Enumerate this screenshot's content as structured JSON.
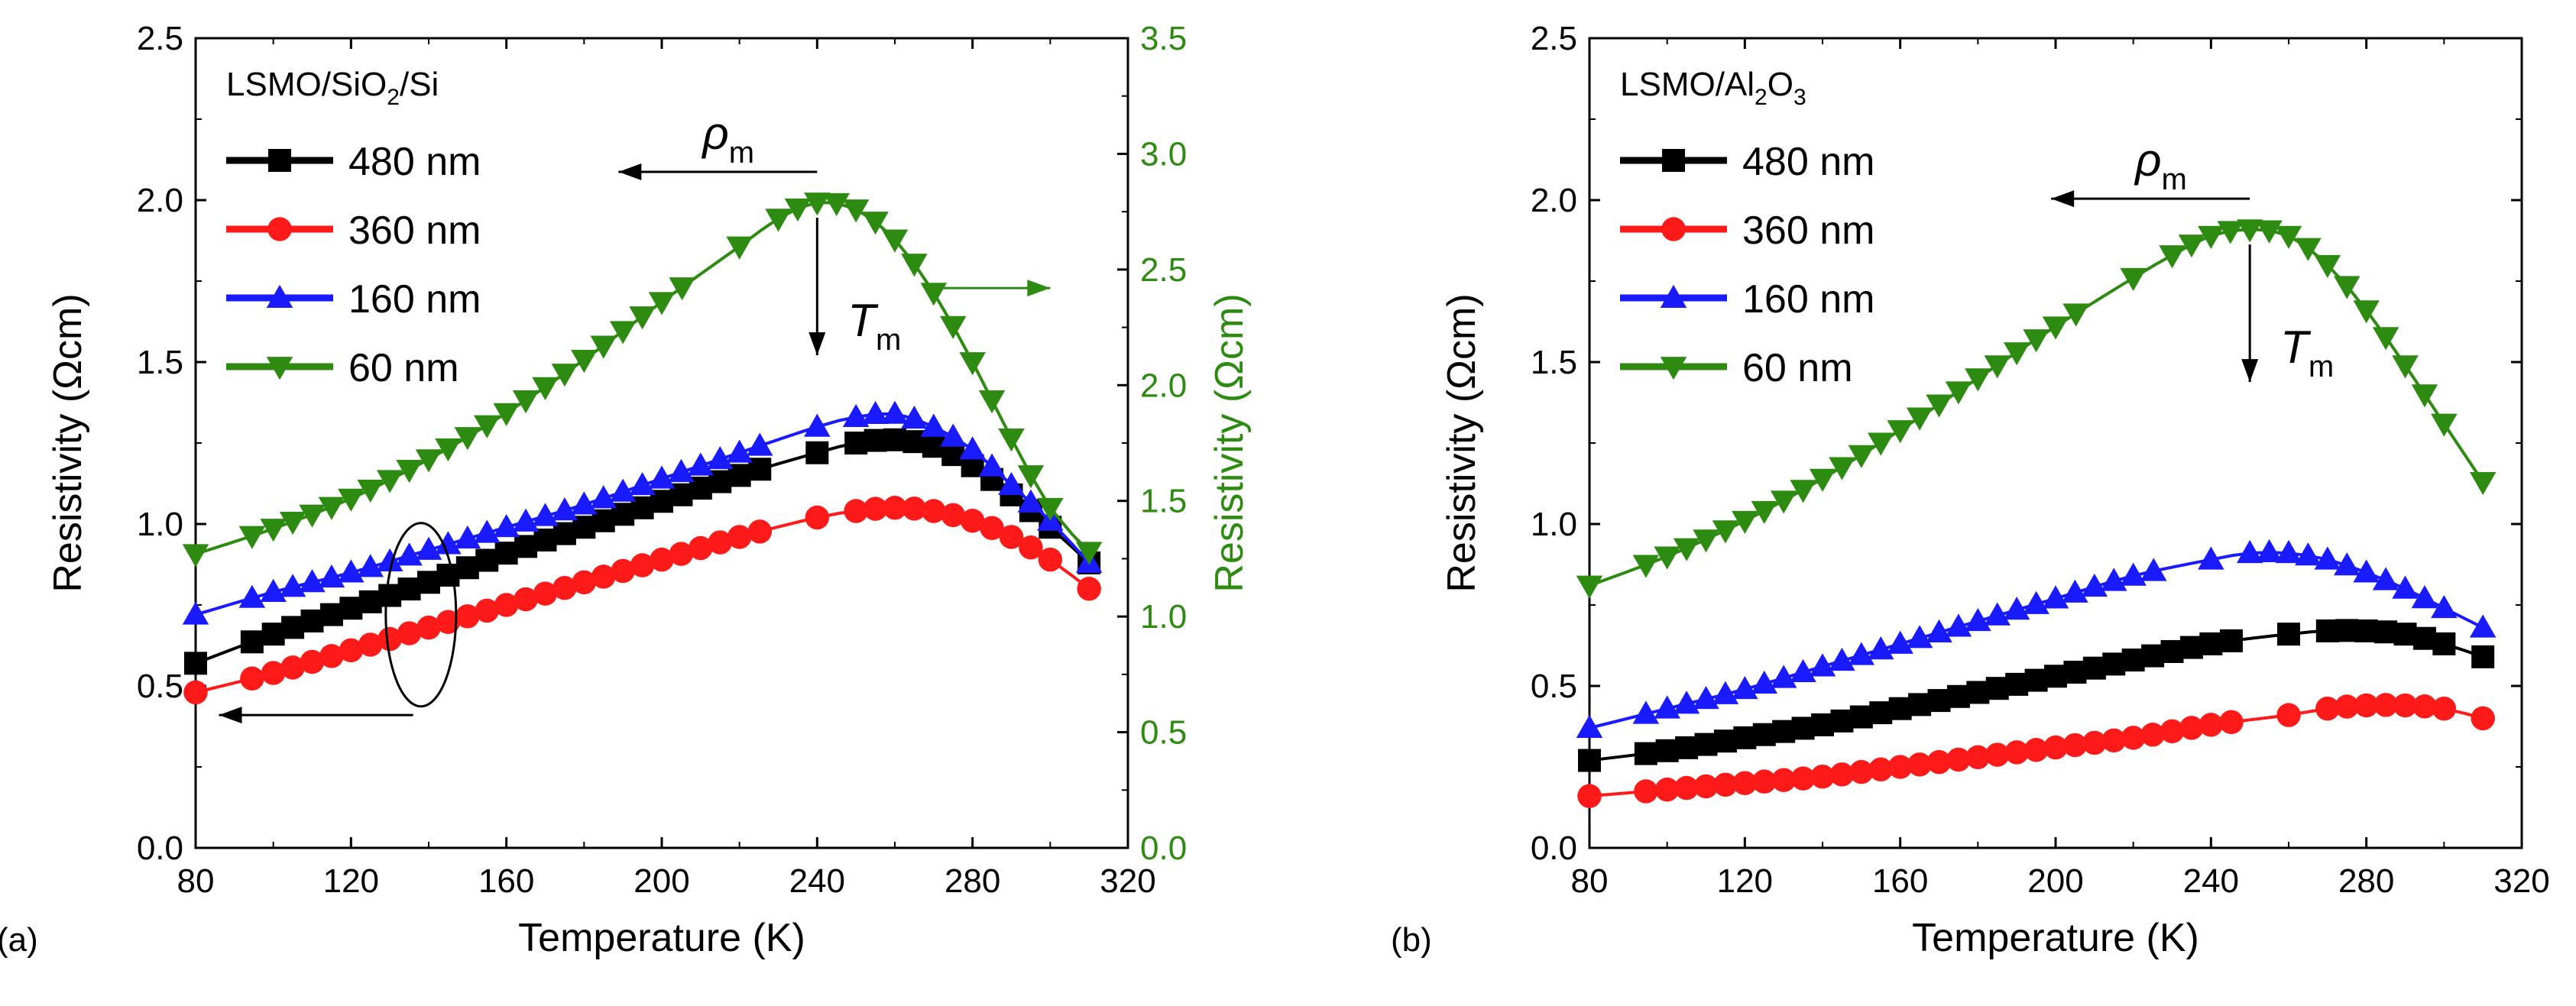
{
  "colors": {
    "black": "#000000",
    "red": "#ff1a1a",
    "blue": "#1a1aff",
    "green": "#2e8b12"
  },
  "chart_data": [
    {
      "panel_label": "(a)",
      "type": "line",
      "legend_title": "LSMO/SiO",
      "legend_title_sub": "2",
      "legend_title_tail": "/Si",
      "xlabel": "Temperature (K)",
      "ylabel": "Resistivity (Ωcm)",
      "y2label": "Resistivity (Ωcm)",
      "xlim": [
        80,
        320
      ],
      "ylim": [
        0,
        2.5
      ],
      "y2lim": [
        0,
        3.5
      ],
      "xticks": [
        "80",
        "120",
        "160",
        "200",
        "240",
        "280",
        "320"
      ],
      "yticks": [
        "0.0",
        "0.5",
        "1.0",
        "1.5",
        "2.0",
        "2.5"
      ],
      "y2ticks": [
        "0.0",
        "0.5",
        "1.0",
        "1.5",
        "2.0",
        "2.5",
        "3.0",
        "3.5"
      ],
      "annotation_rho": "ρ",
      "annotation_rho_sub": "m",
      "annotation_T": "T",
      "annotation_T_sub": "m",
      "series": [
        {
          "name": "480 nm",
          "color": "#000000",
          "marker": "square",
          "axis": "left",
          "x": [
            80,
            100,
            120,
            140,
            160,
            180,
            200,
            220,
            240,
            250,
            260,
            270,
            280,
            290,
            300,
            310
          ],
          "values": [
            0.57,
            0.66,
            0.74,
            0.82,
            0.91,
            0.99,
            1.07,
            1.15,
            1.22,
            1.25,
            1.26,
            1.24,
            1.18,
            1.09,
            0.99,
            0.88
          ]
        },
        {
          "name": "360 nm",
          "color": "#ff1a1a",
          "marker": "circle",
          "axis": "left",
          "x": [
            80,
            100,
            120,
            140,
            160,
            180,
            200,
            220,
            240,
            250,
            260,
            270,
            280,
            290,
            300,
            310
          ],
          "values": [
            0.48,
            0.54,
            0.61,
            0.68,
            0.75,
            0.82,
            0.89,
            0.96,
            1.02,
            1.04,
            1.05,
            1.04,
            1.01,
            0.96,
            0.89,
            0.8
          ]
        },
        {
          "name": "160 nm",
          "color": "#1a1aff",
          "marker": "triangle-up",
          "axis": "left",
          "x": [
            80,
            100,
            120,
            140,
            160,
            180,
            200,
            220,
            240,
            250,
            260,
            270,
            280,
            290,
            300,
            310
          ],
          "values": [
            0.72,
            0.79,
            0.85,
            0.92,
            0.99,
            1.06,
            1.14,
            1.22,
            1.3,
            1.33,
            1.34,
            1.3,
            1.23,
            1.12,
            1.01,
            0.88
          ]
        },
        {
          "name": "60 nm",
          "color": "#2e8b12",
          "marker": "triangle-down",
          "axis": "right",
          "x": [
            80,
            100,
            120,
            140,
            160,
            180,
            200,
            220,
            230,
            240,
            250,
            260,
            270,
            280,
            290,
            300,
            310
          ],
          "values": [
            1.27,
            1.38,
            1.51,
            1.68,
            1.88,
            2.11,
            2.36,
            2.6,
            2.72,
            2.79,
            2.76,
            2.63,
            2.4,
            2.1,
            1.77,
            1.47,
            1.28
          ]
        }
      ]
    },
    {
      "panel_label": "(b)",
      "type": "line",
      "legend_title": "LSMO/Al",
      "legend_title_sub": "2",
      "legend_title_mid": "O",
      "legend_title_sub2": "3",
      "xlabel": "Temperature (K)",
      "ylabel": "Resistivity (Ωcm)",
      "xlim": [
        80,
        320
      ],
      "ylim": [
        0,
        2.5
      ],
      "xticks": [
        "80",
        "120",
        "160",
        "200",
        "240",
        "280",
        "320"
      ],
      "yticks": [
        "0.0",
        "0.5",
        "1.0",
        "1.5",
        "2.0",
        "2.5"
      ],
      "annotation_rho": "ρ",
      "annotation_rho_sub": "m",
      "annotation_T": "T",
      "annotation_T_sub": "m",
      "series": [
        {
          "name": "480 nm",
          "color": "#000000",
          "marker": "square",
          "x": [
            80,
            100,
            120,
            140,
            160,
            180,
            200,
            220,
            240,
            260,
            270,
            280,
            290,
            300,
            310
          ],
          "values": [
            0.27,
            0.3,
            0.34,
            0.38,
            0.43,
            0.48,
            0.53,
            0.58,
            0.63,
            0.66,
            0.67,
            0.67,
            0.66,
            0.63,
            0.59
          ]
        },
        {
          "name": "360 nm",
          "color": "#ff1a1a",
          "marker": "circle",
          "x": [
            80,
            100,
            120,
            140,
            160,
            180,
            200,
            220,
            240,
            260,
            270,
            280,
            290,
            300,
            310
          ],
          "values": [
            0.16,
            0.18,
            0.2,
            0.22,
            0.25,
            0.28,
            0.31,
            0.34,
            0.38,
            0.41,
            0.43,
            0.44,
            0.44,
            0.43,
            0.4
          ]
        },
        {
          "name": "160 nm",
          "color": "#1a1aff",
          "marker": "triangle-up",
          "x": [
            80,
            100,
            120,
            140,
            160,
            180,
            200,
            220,
            240,
            250,
            260,
            270,
            280,
            290,
            300,
            310
          ],
          "values": [
            0.37,
            0.43,
            0.49,
            0.56,
            0.63,
            0.7,
            0.77,
            0.84,
            0.89,
            0.91,
            0.91,
            0.89,
            0.85,
            0.8,
            0.74,
            0.68
          ]
        },
        {
          "name": "60 nm",
          "color": "#2e8b12",
          "marker": "triangle-down",
          "x": [
            80,
            100,
            120,
            140,
            160,
            180,
            200,
            220,
            230,
            240,
            250,
            260,
            270,
            280,
            290,
            300,
            310
          ],
          "values": [
            0.81,
            0.9,
            1.01,
            1.14,
            1.29,
            1.45,
            1.61,
            1.76,
            1.83,
            1.89,
            1.91,
            1.89,
            1.8,
            1.66,
            1.49,
            1.31,
            1.13
          ]
        }
      ]
    }
  ]
}
